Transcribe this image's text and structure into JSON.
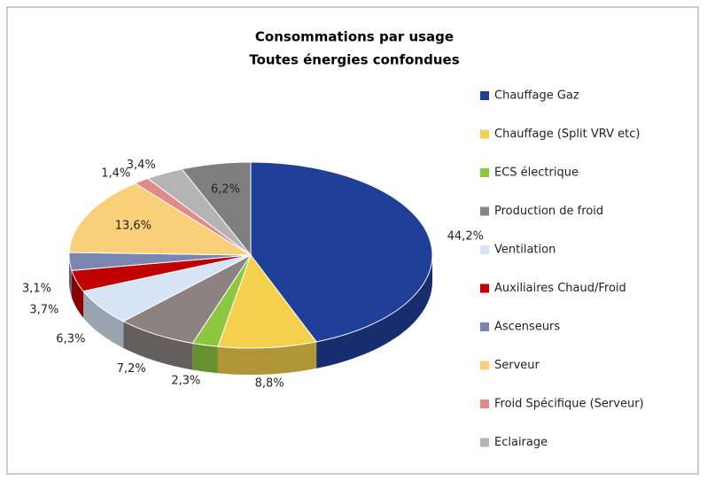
{
  "chart_data": {
    "type": "pie3d",
    "title": "Consommations par usage",
    "subtitle": "Toutes énergies confondues",
    "categories": [
      "Chauffage Gaz",
      "Chauffage (Split VRV etc)",
      "ECS électrique",
      "Production de froid",
      "Ventilation",
      "Auxiliaires Chaud/Froid",
      "Ascenseurs",
      "Serveur",
      "Froid Spécifique (Serveur)",
      "Eclairage",
      null
    ],
    "values": [
      44.2,
      8.8,
      2.3,
      7.2,
      6.3,
      3.7,
      3.1,
      13.6,
      1.4,
      3.4,
      6.2
    ],
    "value_labels": [
      "44,2%",
      "8,8%",
      "2,3%",
      "7,2%",
      "6,3%",
      "3,7%",
      "3,1%",
      "13,6%",
      "1,4%",
      "3,4%",
      "6,2%"
    ],
    "colors": [
      "#1f3f99",
      "#f5d04c",
      "#8dc63f",
      "#8c8282",
      "#d6e4f5",
      "#c00000",
      "#7a86b0",
      "#f9cf7a",
      "#e08a8a",
      "#b4b4b4",
      "#7f7f7f"
    ],
    "legend": "right"
  }
}
